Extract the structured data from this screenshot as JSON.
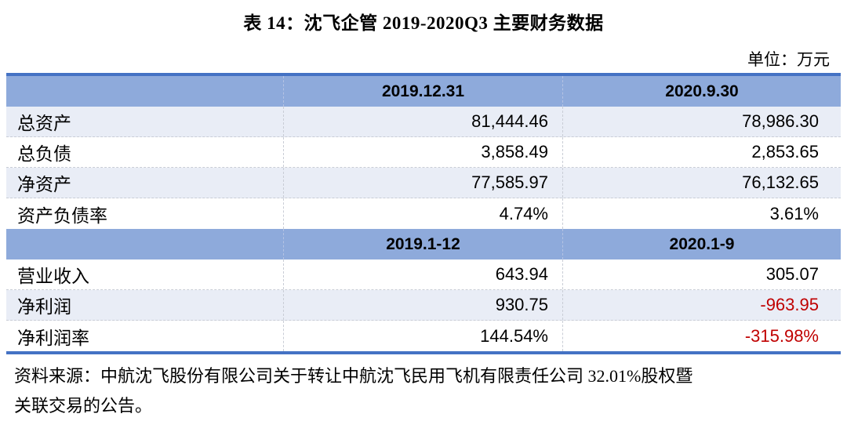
{
  "title": "表 14：沈飞企管 2019-2020Q3 主要财务数据",
  "unit_label": "单位：万元",
  "table": {
    "section1": {
      "headers": [
        "",
        "2019.12.31",
        "2020.9.30"
      ],
      "rows": [
        {
          "label": "总资产",
          "v1": "81,444.46",
          "v2": "78,986.30"
        },
        {
          "label": "总负债",
          "v1": "3,858.49",
          "v2": "2,853.65"
        },
        {
          "label": "净资产",
          "v1": "77,585.97",
          "v2": "76,132.65"
        },
        {
          "label": "资产负债率",
          "v1": "4.74%",
          "v2": "3.61%"
        }
      ]
    },
    "section2": {
      "headers": [
        "",
        "2019.1-12",
        "2020.1-9"
      ],
      "rows": [
        {
          "label": "营业收入",
          "v1": "643.94",
          "v2": "305.07"
        },
        {
          "label": "净利润",
          "v1": "930.75",
          "v2": "-963.95"
        },
        {
          "label": "净利润率",
          "v1": "144.54%",
          "v2": "-315.98%"
        }
      ]
    }
  },
  "source_lines": [
    "资料来源：中航沈飞股份有限公司关于转让中航沈飞民用飞机有限责任公司 32.01%股权暨",
    "关联交易的公告。"
  ],
  "colors": {
    "header_fill": "#8EAADB",
    "band_fill": "#E9EDF6",
    "border_blue": "#4472C4",
    "negative_red": "#C00000"
  }
}
